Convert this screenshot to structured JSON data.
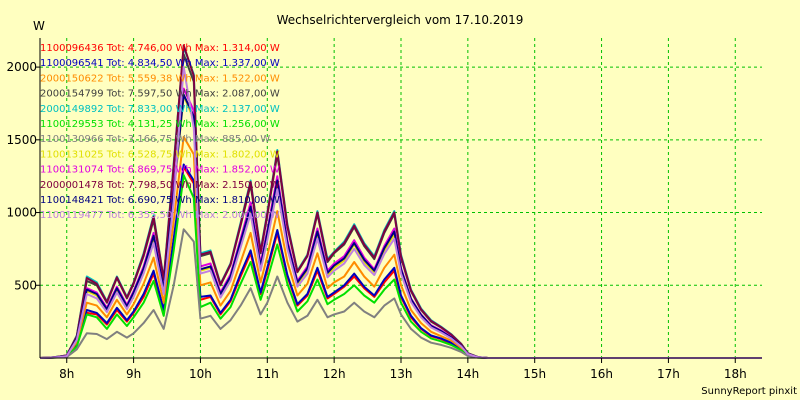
{
  "chart_data": {
    "type": "line",
    "title": "Wechselrichtervergleich vom 17.10.2019",
    "ylabel": "W",
    "footer": "SunnyReport pinxit",
    "xlim": [
      7.6,
      18.4
    ],
    "ylim": [
      0,
      2200
    ],
    "xticks": [
      8,
      9,
      10,
      11,
      12,
      13,
      14,
      15,
      16,
      17,
      18
    ],
    "xtick_labels": [
      "8h",
      "9h",
      "10h",
      "11h",
      "12h",
      "13h",
      "14h",
      "15h",
      "16h",
      "17h",
      "18h"
    ],
    "yticks": [
      500,
      1000,
      1500,
      2000
    ],
    "ytick_labels": [
      "500",
      "1000",
      "1500",
      "2000"
    ],
    "grid": true,
    "legend_position": "top-left",
    "x": [
      7.6,
      7.75,
      7.9,
      8.0,
      8.15,
      8.3,
      8.45,
      8.6,
      8.75,
      8.9,
      9.0,
      9.15,
      9.3,
      9.45,
      9.6,
      9.75,
      9.9,
      10.0,
      10.15,
      10.3,
      10.45,
      10.6,
      10.75,
      10.9,
      11.0,
      11.15,
      11.3,
      11.45,
      11.6,
      11.75,
      11.9,
      12.0,
      12.15,
      12.3,
      12.45,
      12.6,
      12.75,
      12.9,
      13.0,
      13.15,
      13.3,
      13.45,
      13.6,
      13.75,
      13.9,
      14.0,
      14.15,
      14.3,
      14.45,
      14.6,
      14.75,
      14.9,
      15.0,
      15.15,
      15.3,
      15.45,
      15.6,
      15.75,
      15.9,
      16.0,
      16.15,
      16.3,
      16.45,
      16.6,
      16.75,
      16.9,
      17.0,
      17.15,
      17.3,
      17.45,
      17.6,
      17.75,
      17.9,
      18.0,
      18.15,
      18.3,
      18.4
    ],
    "series": [
      {
        "name": "1100096436 Tot: 4.746,00 Wh Max: 1.314,00 W",
        "color": "#ff0000",
        "values": [
          0,
          2,
          6,
          10,
          90,
          310,
          300,
          230,
          330,
          250,
          310,
          420,
          580,
          320,
          800,
          1314,
          1200,
          400,
          420,
          300,
          390,
          560,
          720,
          440,
          600,
          860,
          560,
          360,
          430,
          600,
          410,
          440,
          490,
          560,
          480,
          420,
          520,
          600,
          420,
          280,
          200,
          150,
          130,
          100,
          60,
          20,
          4,
          0,
          0,
          0,
          0,
          0,
          0,
          0,
          0,
          0,
          0,
          0,
          0,
          0,
          0,
          0,
          0,
          0,
          0,
          0,
          0,
          0,
          0,
          0,
          0,
          0,
          0,
          0,
          0,
          0,
          0
        ]
      },
      {
        "name": "1100096541 Tot: 4.834,50 Wh Max: 1.337,00 W",
        "color": "#0000c0",
        "values": [
          0,
          2,
          6,
          10,
          95,
          330,
          310,
          240,
          345,
          260,
          320,
          440,
          600,
          330,
          820,
          1330,
          1220,
          420,
          430,
          310,
          400,
          580,
          740,
          450,
          620,
          880,
          570,
          370,
          440,
          620,
          420,
          450,
          500,
          580,
          490,
          430,
          540,
          620,
          430,
          290,
          205,
          155,
          135,
          105,
          62,
          20,
          4,
          0,
          0,
          0,
          0,
          0,
          0,
          0,
          0,
          0,
          0,
          0,
          0,
          0,
          0,
          0,
          0,
          0,
          0,
          0,
          0,
          0,
          0,
          0,
          0,
          0,
          0,
          0,
          0,
          0,
          0
        ]
      },
      {
        "name": "2000150622 Tot: 5.559,38 Wh Max: 1.522,00 W",
        "color": "#ff8c00",
        "values": [
          0,
          2,
          8,
          12,
          110,
          380,
          360,
          280,
          400,
          300,
          370,
          510,
          690,
          380,
          940,
          1520,
          1400,
          500,
          520,
          360,
          460,
          660,
          860,
          520,
          700,
          1010,
          660,
          430,
          510,
          720,
          480,
          520,
          560,
          660,
          560,
          490,
          620,
          710,
          500,
          330,
          240,
          180,
          150,
          120,
          70,
          24,
          5,
          0,
          0,
          0,
          0,
          0,
          0,
          0,
          0,
          0,
          0,
          0,
          0,
          0,
          0,
          0,
          0,
          0,
          0,
          0,
          0,
          0,
          0,
          0,
          0,
          0,
          0,
          0,
          0,
          0,
          0
        ]
      },
      {
        "name": "2000154799 Tot: 7.597,50 Wh Max: 2.087,00 W",
        "color": "#404040",
        "values": [
          0,
          3,
          10,
          18,
          150,
          530,
          500,
          380,
          550,
          410,
          510,
          700,
          950,
          530,
          1300,
          2087,
          1900,
          700,
          720,
          500,
          640,
          910,
          1190,
          720,
          980,
          1400,
          900,
          590,
          700,
          990,
          660,
          720,
          780,
          900,
          770,
          680,
          860,
          990,
          690,
          460,
          330,
          250,
          210,
          160,
          95,
          32,
          6,
          0,
          0,
          0,
          0,
          0,
          0,
          0,
          0,
          0,
          0,
          0,
          0,
          0,
          0,
          0,
          0,
          0,
          0,
          0,
          0,
          0,
          0,
          0,
          0,
          0,
          0,
          0,
          0,
          0,
          0
        ]
      },
      {
        "name": "2000149892 Tot: 7.833,00 Wh Max: 2.137,00 W",
        "color": "#00c0c0",
        "values": [
          0,
          3,
          10,
          18,
          155,
          560,
          520,
          390,
          560,
          420,
          520,
          720,
          980,
          545,
          1340,
          2137,
          1950,
          720,
          740,
          510,
          650,
          930,
          1220,
          740,
          1000,
          1430,
          920,
          600,
          710,
          1010,
          680,
          730,
          800,
          920,
          790,
          700,
          880,
          1010,
          710,
          470,
          340,
          260,
          215,
          165,
          98,
          33,
          6,
          0,
          0,
          0,
          0,
          0,
          0,
          0,
          0,
          0,
          0,
          0,
          0,
          0,
          0,
          0,
          0,
          0,
          0,
          0,
          0,
          0,
          0,
          0,
          0,
          0,
          0,
          0,
          0,
          0,
          0
        ]
      },
      {
        "name": "1100129553 Tot: 4.131,25 Wh Max: 1.256,00 W",
        "color": "#00e000",
        "values": [
          0,
          1,
          5,
          8,
          80,
          300,
          280,
          200,
          300,
          220,
          280,
          380,
          530,
          290,
          740,
          1256,
          1100,
          350,
          380,
          270,
          350,
          510,
          660,
          400,
          540,
          780,
          510,
          320,
          390,
          540,
          370,
          400,
          440,
          500,
          430,
          380,
          470,
          540,
          380,
          250,
          180,
          135,
          115,
          90,
          54,
          18,
          3,
          0,
          0,
          0,
          0,
          0,
          0,
          0,
          0,
          0,
          0,
          0,
          0,
          0,
          0,
          0,
          0,
          0,
          0,
          0,
          0,
          0,
          0,
          0,
          0,
          0,
          0,
          0,
          0,
          0,
          0
        ]
      },
      {
        "name": "1100130966 Tot: 3.166,75 Wh Max: 885,00 W",
        "color": "#808080",
        "values": [
          0,
          1,
          4,
          6,
          60,
          170,
          165,
          130,
          180,
          140,
          170,
          240,
          330,
          200,
          500,
          885,
          800,
          270,
          290,
          200,
          260,
          360,
          480,
          300,
          380,
          560,
          380,
          250,
          290,
          400,
          280,
          300,
          320,
          380,
          320,
          280,
          360,
          410,
          300,
          200,
          140,
          105,
          90,
          70,
          42,
          14,
          3,
          0,
          0,
          0,
          0,
          0,
          0,
          0,
          0,
          0,
          0,
          0,
          0,
          0,
          0,
          0,
          0,
          0,
          0,
          0,
          0,
          0,
          0,
          0,
          0,
          0,
          0,
          0,
          0,
          0,
          0
        ]
      },
      {
        "name": "1100131025 Tot: 6.528,75 Wh Max: 1.802,00 W",
        "color": "#e0e000",
        "values": [
          0,
          2,
          8,
          14,
          130,
          460,
          430,
          330,
          470,
          350,
          440,
          600,
          820,
          460,
          1120,
          1802,
          1640,
          600,
          620,
          430,
          550,
          790,
          1020,
          620,
          840,
          1200,
          780,
          510,
          600,
          850,
          570,
          620,
          670,
          780,
          660,
          590,
          740,
          850,
          600,
          400,
          290,
          215,
          180,
          140,
          82,
          28,
          5,
          0,
          0,
          0,
          0,
          0,
          0,
          0,
          0,
          0,
          0,
          0,
          0,
          0,
          0,
          0,
          0,
          0,
          0,
          0,
          0,
          0,
          0,
          0,
          0,
          0,
          0,
          0,
          0,
          0,
          0
        ]
      },
      {
        "name": "1100131074 Tot: 6.869,75 Wh Max: 1.852,00 W",
        "color": "#e000e0",
        "values": [
          0,
          2,
          8,
          15,
          140,
          480,
          450,
          345,
          490,
          365,
          460,
          630,
          860,
          480,
          1170,
          1852,
          1700,
          630,
          650,
          450,
          575,
          820,
          1070,
          650,
          880,
          1250,
          810,
          530,
          630,
          890,
          600,
          650,
          700,
          810,
          690,
          610,
          770,
          890,
          620,
          410,
          300,
          225,
          190,
          145,
          86,
          29,
          5,
          0,
          0,
          0,
          0,
          0,
          0,
          0,
          0,
          0,
          0,
          0,
          0,
          0,
          0,
          0,
          0,
          0,
          0,
          0,
          0,
          0,
          0,
          0,
          0,
          0,
          0,
          0,
          0,
          0,
          0
        ]
      },
      {
        "name": "2000001478 Tot: 7.798,50 Wh Max: 2.150,00 W",
        "color": "#800040",
        "values": [
          0,
          3,
          10,
          18,
          150,
          550,
          510,
          385,
          555,
          415,
          515,
          710,
          970,
          540,
          1320,
          2150,
          1940,
          710,
          730,
          505,
          645,
          920,
          1210,
          730,
          990,
          1420,
          910,
          595,
          705,
          1000,
          670,
          725,
          790,
          910,
          780,
          690,
          870,
          1000,
          700,
          465,
          335,
          255,
          212,
          162,
          96,
          32,
          6,
          0,
          0,
          0,
          0,
          0,
          0,
          0,
          0,
          0,
          0,
          0,
          0,
          0,
          0,
          0,
          0,
          0,
          0,
          0,
          0,
          0,
          0,
          0,
          0,
          0,
          0,
          0,
          0,
          0,
          0
        ]
      },
      {
        "name": "1100148421 Tot: 6.690,75 Wh Max: 1.810,00 W",
        "color": "#000080",
        "values": [
          0,
          2,
          8,
          14,
          135,
          470,
          440,
          335,
          480,
          355,
          450,
          615,
          840,
          470,
          1140,
          1810,
          1660,
          610,
          630,
          440,
          560,
          800,
          1040,
          630,
          860,
          1220,
          790,
          520,
          615,
          870,
          585,
          635,
          685,
          790,
          675,
          600,
          755,
          870,
          610,
          405,
          295,
          220,
          185,
          142,
          84,
          28,
          5,
          0,
          0,
          0,
          0,
          0,
          0,
          0,
          0,
          0,
          0,
          0,
          0,
          0,
          0,
          0,
          0,
          0,
          0,
          0,
          0,
          0,
          0,
          0,
          0,
          0,
          0,
          0,
          0,
          0,
          0
        ]
      },
      {
        "name": "1100119477 Tot: 6.355,50 Wh Max: 2.000,00 W",
        "color": "#c080e0",
        "values": [
          0,
          2,
          7,
          13,
          125,
          440,
          410,
          315,
          450,
          335,
          420,
          580,
          790,
          440,
          1080,
          2000,
          1580,
          580,
          600,
          415,
          530,
          760,
          990,
          600,
          810,
          1160,
          750,
          490,
          580,
          820,
          555,
          600,
          650,
          750,
          640,
          570,
          715,
          820,
          580,
          385,
          280,
          210,
          175,
          135,
          80,
          27,
          5,
          0,
          0,
          0,
          0,
          0,
          0,
          0,
          0,
          0,
          0,
          0,
          0,
          0,
          0,
          0,
          0,
          0,
          0,
          0,
          0,
          0,
          0,
          0,
          0,
          0,
          0,
          0,
          0,
          0,
          0
        ]
      }
    ]
  }
}
